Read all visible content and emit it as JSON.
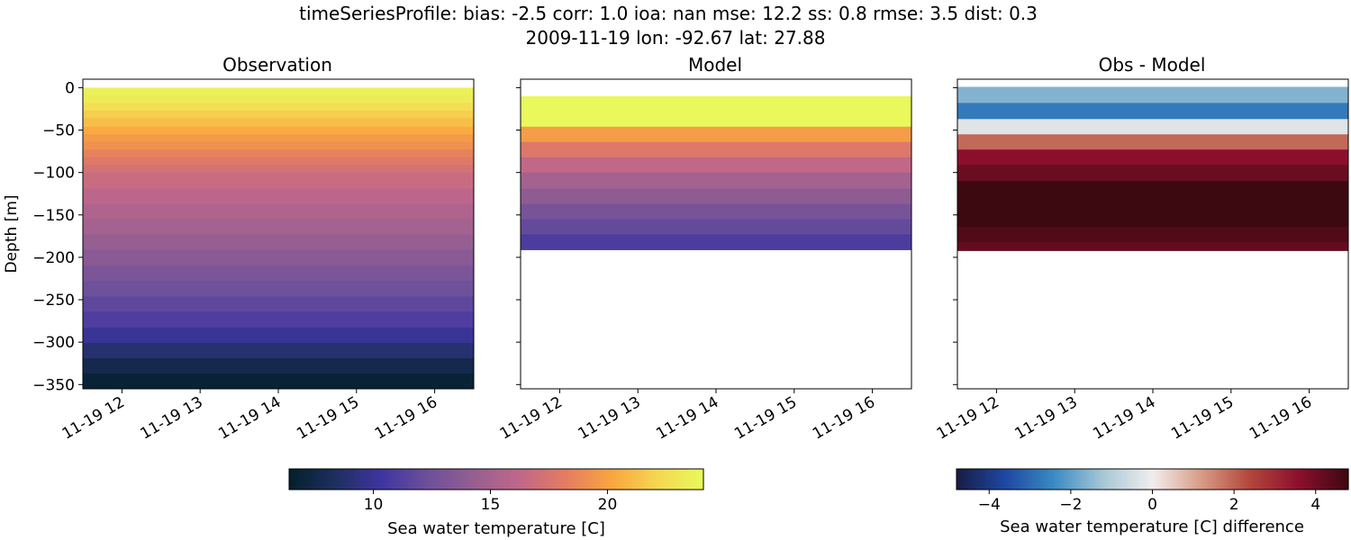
{
  "title_line1": "timeSeriesProfile: bias: -2.5  corr: 1.0  ioa: nan  mse: 12.2  ss: 0.8  rmse: 3.5  dist: 0.3",
  "title_line2": "2009-11-19 lon: -92.67 lat: 27.88",
  "chart_data": [
    {
      "type": "heatmap",
      "title": "Observation",
      "ylabel": "Depth [m]",
      "ylim": [
        -355,
        10
      ],
      "xlim_hours": [
        11.5,
        16.5
      ],
      "x_ticks": [
        "11-19 12",
        "11-19 13",
        "11-19 14",
        "11-19 15",
        "11-19 16"
      ],
      "y_ticks": [
        0,
        -50,
        -100,
        -150,
        -200,
        -250,
        -300,
        -350
      ],
      "colorbar": "thermal",
      "depth_levels": [
        0,
        -9,
        -18,
        -27,
        -36,
        -46,
        -55,
        -64,
        -73,
        -82,
        -91,
        -100,
        -119,
        -137,
        -155,
        -173,
        -191,
        -210,
        -228,
        -246,
        -264,
        -283,
        -301,
        -319,
        -337,
        -355
      ],
      "values": [
        23.6,
        23.3,
        22.5,
        21.8,
        21.2,
        20.4,
        19.7,
        19.2,
        18.5,
        17.9,
        17.3,
        16.7,
        16.1,
        15.4,
        14.9,
        14.3,
        13.7,
        13.0,
        12.4,
        11.7,
        11.0,
        10.0,
        8.9,
        7.6,
        6.8
      ]
    },
    {
      "type": "heatmap",
      "title": "Model",
      "ylim": [
        -355,
        10
      ],
      "xlim_hours": [
        11.5,
        16.5
      ],
      "x_ticks": [
        "11-19 12",
        "11-19 13",
        "11-19 14",
        "11-19 15",
        "11-19 16"
      ],
      "colorbar": "thermal",
      "depth_levels": [
        10,
        -10,
        -46,
        -64,
        -82,
        -100,
        -119,
        -137,
        -155,
        -173,
        -191
      ],
      "values": [
        null,
        24.0,
        19.8,
        17.8,
        16.3,
        14.9,
        13.9,
        12.8,
        11.9,
        10.9
      ]
    },
    {
      "type": "heatmap",
      "title": "Obs - Model",
      "ylim": [
        -355,
        10
      ],
      "xlim_hours": [
        11.5,
        16.5
      ],
      "x_ticks": [
        "11-19 12",
        "11-19 13",
        "11-19 14",
        "11-19 15",
        "11-19 16"
      ],
      "colorbar": "balance",
      "depth_levels": [
        1,
        -18,
        -37,
        -55,
        -73,
        -91,
        -110,
        -128,
        -146,
        -164,
        -182,
        -192
      ],
      "values": [
        -1.6,
        -2.7,
        -0.3,
        1.9,
        3.6,
        4.1,
        4.8,
        4.8,
        4.8,
        4.5,
        4.2
      ]
    }
  ],
  "colorbars": [
    {
      "label": "Sea water temperature [C]",
      "vmin": 6.4,
      "vmax": 24.1,
      "ticks": [
        10,
        15,
        20
      ],
      "tick_labels": [
        "10",
        "15",
        "20"
      ],
      "stops": [
        "#04202c",
        "#1e2f5e",
        "#3f35a0",
        "#6d4f9a",
        "#955f92",
        "#c0678a",
        "#e47c62",
        "#f9a53f",
        "#f5d752",
        "#e8fa5b"
      ]
    },
    {
      "label": "Sea water temperature [C] difference",
      "vmin": -4.8,
      "vmax": 4.8,
      "ticks": [
        -4,
        -2,
        0,
        2,
        4
      ],
      "tick_labels": [
        "−4",
        "−2",
        "0",
        "2",
        "4"
      ],
      "stops": [
        "#181c43",
        "#1e48a3",
        "#3b8bc2",
        "#a8c7d6",
        "#f1eeed",
        "#d89b86",
        "#b2463a",
        "#8b0f2d",
        "#3c0911"
      ]
    }
  ]
}
